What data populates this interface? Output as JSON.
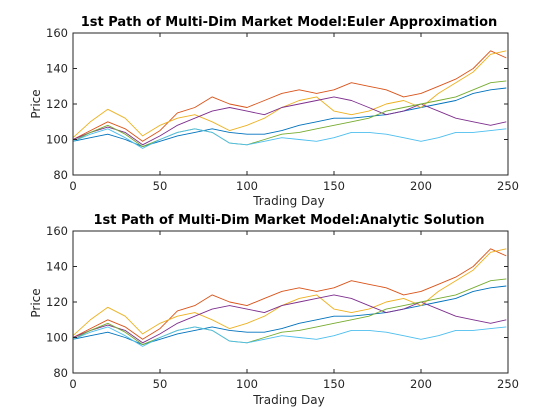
{
  "chart_data": [
    {
      "type": "line",
      "title": "1st Path of Multi-Dim Market Model:Euler Approximation",
      "xlabel": "Trading Day",
      "ylabel": "Price",
      "xlim": [
        0,
        250
      ],
      "ylim": [
        80,
        160
      ],
      "xticks": [
        "0",
        "50",
        "100",
        "150",
        "200",
        "250"
      ],
      "yticks": [
        "80",
        "100",
        "120",
        "140",
        "160"
      ],
      "grid": false,
      "legend": "none",
      "series": [
        {
          "color": "#0072BD",
          "x": [
            0,
            10,
            20,
            30,
            40,
            50,
            60,
            70,
            80,
            90,
            100,
            110,
            120,
            130,
            140,
            150,
            160,
            170,
            180,
            190,
            200,
            210,
            220,
            230,
            240,
            249
          ],
          "values": [
            99,
            101,
            103,
            100,
            96,
            99,
            102,
            104,
            106,
            104,
            103,
            103,
            105,
            108,
            110,
            112,
            112,
            113,
            114,
            116,
            118,
            120,
            122,
            126,
            128,
            129
          ]
        },
        {
          "color": "#D95319",
          "x": [
            0,
            10,
            20,
            30,
            40,
            50,
            60,
            70,
            80,
            90,
            100,
            110,
            120,
            130,
            140,
            150,
            160,
            170,
            180,
            190,
            200,
            210,
            220,
            230,
            240,
            249
          ],
          "values": [
            100,
            105,
            110,
            106,
            99,
            105,
            115,
            118,
            124,
            120,
            118,
            122,
            126,
            128,
            126,
            128,
            132,
            130,
            128,
            124,
            126,
            130,
            134,
            140,
            150,
            146
          ]
        },
        {
          "color": "#EDB120",
          "x": [
            0,
            10,
            20,
            30,
            40,
            50,
            60,
            70,
            80,
            90,
            100,
            110,
            120,
            130,
            140,
            150,
            160,
            170,
            180,
            190,
            200,
            210,
            220,
            230,
            240,
            249
          ],
          "values": [
            101,
            110,
            117,
            112,
            102,
            108,
            112,
            114,
            110,
            105,
            108,
            112,
            118,
            122,
            124,
            116,
            114,
            116,
            120,
            122,
            118,
            126,
            132,
            138,
            148,
            150
          ]
        },
        {
          "color": "#7E2F8E",
          "x": [
            0,
            10,
            20,
            30,
            40,
            50,
            60,
            70,
            80,
            90,
            100,
            110,
            120,
            130,
            140,
            150,
            160,
            170,
            180,
            190,
            200,
            210,
            220,
            230,
            240,
            249
          ],
          "values": [
            100,
            104,
            107,
            104,
            97,
            102,
            108,
            112,
            116,
            118,
            116,
            114,
            118,
            120,
            122,
            124,
            122,
            118,
            114,
            116,
            120,
            116,
            112,
            110,
            108,
            110
          ]
        },
        {
          "color": "#77AC30",
          "x": [
            0,
            10,
            20,
            30,
            40,
            50,
            60,
            70,
            80,
            90,
            100,
            110,
            120,
            130,
            140,
            150,
            160,
            170,
            180,
            190,
            200,
            210,
            220,
            230,
            240,
            249
          ],
          "values": [
            99,
            104,
            108,
            103,
            96,
            100,
            104,
            106,
            104,
            98,
            97,
            100,
            103,
            104,
            106,
            108,
            110,
            112,
            116,
            118,
            120,
            122,
            124,
            128,
            132,
            133
          ]
        },
        {
          "color": "#4DBEEE",
          "x": [
            0,
            10,
            20,
            30,
            40,
            50,
            60,
            70,
            80,
            90,
            100,
            110,
            120,
            130,
            140,
            150,
            160,
            170,
            180,
            190,
            200,
            210,
            220,
            230,
            240,
            249
          ],
          "values": [
            99,
            103,
            106,
            101,
            95,
            100,
            104,
            106,
            104,
            98,
            97,
            99,
            101,
            100,
            99,
            101,
            104,
            104,
            103,
            101,
            99,
            101,
            104,
            104,
            105,
            106
          ]
        }
      ]
    },
    {
      "type": "line",
      "title": "1st Path of Multi-Dim Market Model:Analytic Solution",
      "xlabel": "Trading Day",
      "ylabel": "Price",
      "xlim": [
        0,
        250
      ],
      "ylim": [
        80,
        160
      ],
      "xticks": [
        "0",
        "50",
        "100",
        "150",
        "200",
        "250"
      ],
      "yticks": [
        "80",
        "100",
        "120",
        "140",
        "160"
      ],
      "grid": false,
      "legend": "none",
      "series": [
        {
          "color": "#0072BD",
          "x": [
            0,
            10,
            20,
            30,
            40,
            50,
            60,
            70,
            80,
            90,
            100,
            110,
            120,
            130,
            140,
            150,
            160,
            170,
            180,
            190,
            200,
            210,
            220,
            230,
            240,
            249
          ],
          "values": [
            99,
            101,
            103,
            100,
            96,
            99,
            102,
            104,
            106,
            104,
            103,
            103,
            105,
            108,
            110,
            112,
            112,
            113,
            114,
            116,
            118,
            120,
            122,
            126,
            128,
            129
          ]
        },
        {
          "color": "#D95319",
          "x": [
            0,
            10,
            20,
            30,
            40,
            50,
            60,
            70,
            80,
            90,
            100,
            110,
            120,
            130,
            140,
            150,
            160,
            170,
            180,
            190,
            200,
            210,
            220,
            230,
            240,
            249
          ],
          "values": [
            100,
            105,
            110,
            106,
            99,
            105,
            115,
            118,
            124,
            120,
            118,
            122,
            126,
            128,
            126,
            128,
            132,
            130,
            128,
            124,
            126,
            130,
            134,
            140,
            150,
            146
          ]
        },
        {
          "color": "#EDB120",
          "x": [
            0,
            10,
            20,
            30,
            40,
            50,
            60,
            70,
            80,
            90,
            100,
            110,
            120,
            130,
            140,
            150,
            160,
            170,
            180,
            190,
            200,
            210,
            220,
            230,
            240,
            249
          ],
          "values": [
            101,
            110,
            117,
            112,
            102,
            108,
            112,
            114,
            110,
            105,
            108,
            112,
            118,
            122,
            124,
            116,
            114,
            116,
            120,
            122,
            118,
            126,
            132,
            138,
            148,
            150
          ]
        },
        {
          "color": "#7E2F8E",
          "x": [
            0,
            10,
            20,
            30,
            40,
            50,
            60,
            70,
            80,
            90,
            100,
            110,
            120,
            130,
            140,
            150,
            160,
            170,
            180,
            190,
            200,
            210,
            220,
            230,
            240,
            249
          ],
          "values": [
            100,
            104,
            107,
            104,
            97,
            102,
            108,
            112,
            116,
            118,
            116,
            114,
            118,
            120,
            122,
            124,
            122,
            118,
            114,
            116,
            120,
            116,
            112,
            110,
            108,
            110
          ]
        },
        {
          "color": "#77AC30",
          "x": [
            0,
            10,
            20,
            30,
            40,
            50,
            60,
            70,
            80,
            90,
            100,
            110,
            120,
            130,
            140,
            150,
            160,
            170,
            180,
            190,
            200,
            210,
            220,
            230,
            240,
            249
          ],
          "values": [
            99,
            104,
            108,
            103,
            96,
            100,
            104,
            106,
            104,
            98,
            97,
            100,
            103,
            104,
            106,
            108,
            110,
            112,
            116,
            118,
            120,
            122,
            124,
            128,
            132,
            133
          ]
        },
        {
          "color": "#4DBEEE",
          "x": [
            0,
            10,
            20,
            30,
            40,
            50,
            60,
            70,
            80,
            90,
            100,
            110,
            120,
            130,
            140,
            150,
            160,
            170,
            180,
            190,
            200,
            210,
            220,
            230,
            240,
            249
          ],
          "values": [
            99,
            103,
            106,
            101,
            95,
            100,
            104,
            106,
            104,
            98,
            97,
            99,
            101,
            100,
            99,
            101,
            104,
            104,
            103,
            101,
            99,
            101,
            104,
            104,
            105,
            106
          ]
        }
      ]
    }
  ]
}
